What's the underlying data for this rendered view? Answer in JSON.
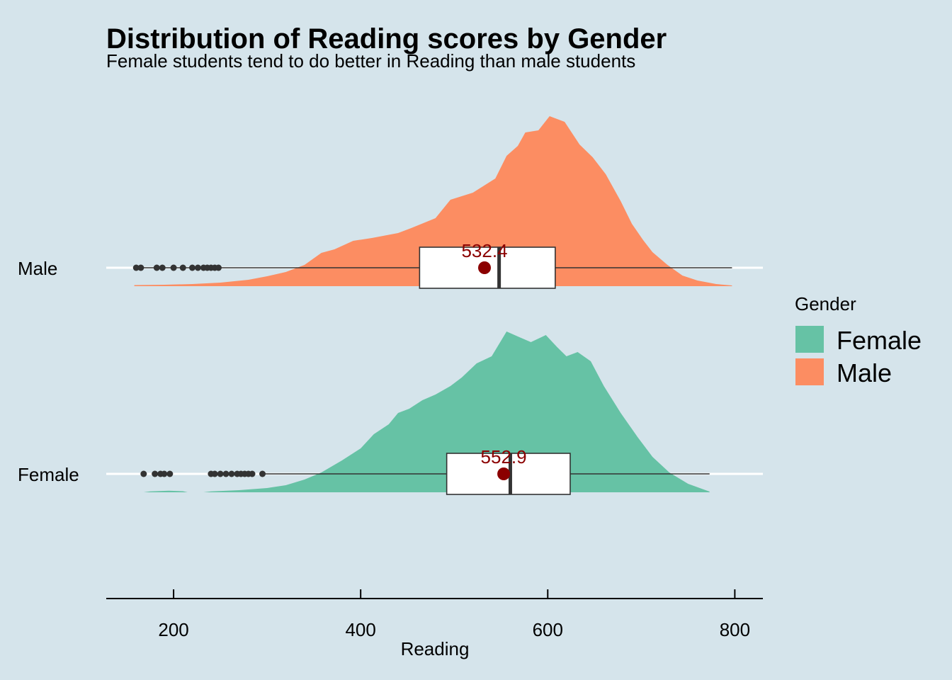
{
  "chart_data": {
    "type": "raincloud",
    "title": "Distribution of Reading scores by Gender",
    "subtitle": "Female students tend to do better in Reading than male students",
    "xlabel": "Reading",
    "ylabel": "",
    "xlim": [
      128,
      830
    ],
    "xticks": [
      200,
      400,
      600,
      800
    ],
    "grid": "horizontal-only",
    "legend": {
      "title": "Gender",
      "position": "right",
      "entries": [
        {
          "label": "Female",
          "color": "#66c2a5"
        },
        {
          "label": "Male",
          "color": "#fc8d62"
        }
      ]
    },
    "categories": [
      "Male",
      "Female"
    ],
    "series": [
      {
        "name": "Male",
        "color": "#fc8d62",
        "box": {
          "lower_whisker": 158,
          "q1": 463,
          "median": 548,
          "q3": 608,
          "upper_whisker": 797
        },
        "mean": 532.4,
        "mean_label": "532.4",
        "outliers": [
          160,
          165,
          182,
          188,
          200,
          210,
          220,
          226,
          232,
          236,
          240,
          244,
          248
        ],
        "density": [
          [
            158,
            0.015
          ],
          [
            190,
            0.02
          ],
          [
            220,
            0.03
          ],
          [
            250,
            0.05
          ],
          [
            280,
            0.09
          ],
          [
            300,
            0.14
          ],
          [
            320,
            0.2
          ],
          [
            340,
            0.3
          ],
          [
            358,
            0.47
          ],
          [
            372,
            0.52
          ],
          [
            392,
            0.64
          ],
          [
            412,
            0.68
          ],
          [
            440,
            0.75
          ],
          [
            454,
            0.82
          ],
          [
            480,
            0.96
          ],
          [
            496,
            1.22
          ],
          [
            520,
            1.32
          ],
          [
            544,
            1.52
          ],
          [
            556,
            1.84
          ],
          [
            568,
            1.98
          ],
          [
            576,
            2.17
          ],
          [
            590,
            2.2
          ],
          [
            602,
            2.4
          ],
          [
            618,
            2.32
          ],
          [
            634,
            2.0
          ],
          [
            648,
            1.82
          ],
          [
            662,
            1.58
          ],
          [
            678,
            1.2
          ],
          [
            690,
            0.88
          ],
          [
            702,
            0.65
          ],
          [
            712,
            0.48
          ],
          [
            728,
            0.3
          ],
          [
            744,
            0.15
          ],
          [
            760,
            0.08
          ],
          [
            780,
            0.03
          ],
          [
            797,
            0.01
          ]
        ]
      },
      {
        "name": "Female",
        "color": "#66c2a5",
        "box": {
          "lower_whisker": 296,
          "q1": 492,
          "median": 560,
          "q3": 624,
          "upper_whisker": 773
        },
        "mean": 552.9,
        "mean_label": "552.9",
        "outliers": [
          168,
          180,
          186,
          190,
          196,
          240,
          244,
          250,
          256,
          262,
          268,
          272,
          276,
          280,
          284,
          295
        ],
        "density": [
          [
            168,
            0.0
          ],
          [
            175,
            0.012
          ],
          [
            195,
            0.022
          ],
          [
            210,
            0.015
          ],
          [
            215,
            0.0
          ],
          [
            232,
            0.0
          ],
          [
            240,
            0.012
          ],
          [
            270,
            0.03
          ],
          [
            300,
            0.06
          ],
          [
            320,
            0.1
          ],
          [
            340,
            0.18
          ],
          [
            358,
            0.28
          ],
          [
            380,
            0.45
          ],
          [
            400,
            0.62
          ],
          [
            414,
            0.82
          ],
          [
            430,
            0.96
          ],
          [
            440,
            1.12
          ],
          [
            452,
            1.18
          ],
          [
            466,
            1.3
          ],
          [
            480,
            1.38
          ],
          [
            496,
            1.5
          ],
          [
            508,
            1.62
          ],
          [
            524,
            1.82
          ],
          [
            540,
            1.92
          ],
          [
            556,
            2.27
          ],
          [
            568,
            2.2
          ],
          [
            582,
            2.12
          ],
          [
            598,
            2.22
          ],
          [
            610,
            2.05
          ],
          [
            620,
            1.92
          ],
          [
            632,
            1.98
          ],
          [
            646,
            1.85
          ],
          [
            660,
            1.5
          ],
          [
            678,
            1.12
          ],
          [
            696,
            0.78
          ],
          [
            712,
            0.5
          ],
          [
            730,
            0.28
          ],
          [
            750,
            0.12
          ],
          [
            773,
            0.01
          ]
        ]
      }
    ]
  }
}
